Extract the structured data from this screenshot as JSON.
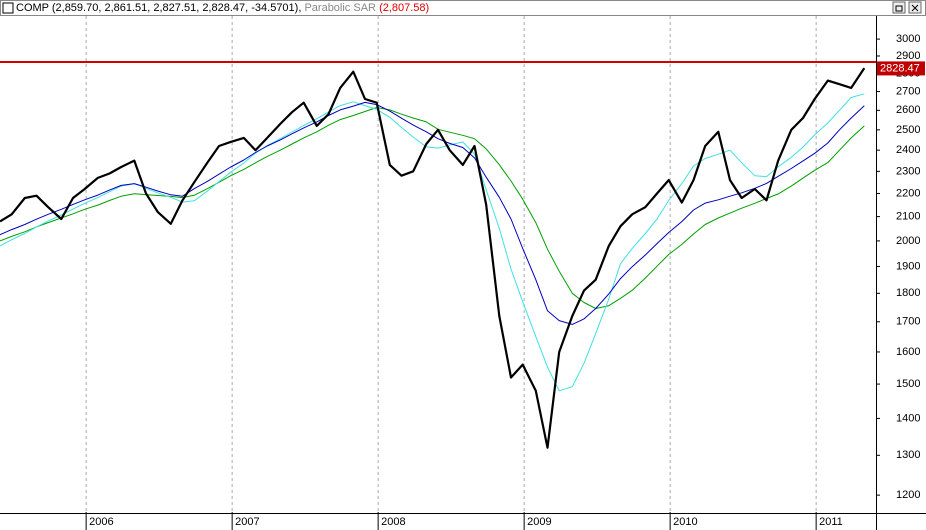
{
  "header": {
    "symbol_info": "COMP (2,859.70, 2,861.51, 2,827.51, 2,828.47, -34.5701),",
    "indicator": "Parabolic SAR",
    "indicator_value": "(2,807.58)"
  },
  "chart_data": {
    "type": "line",
    "log_y": true,
    "grid": true,
    "xlim": [
      2005.41,
      2011.41
    ],
    "xticks": [
      2006,
      2007,
      2008,
      2009,
      2010,
      2011
    ],
    "ylim": [
      1160,
      3130
    ],
    "yticks": [
      1200,
      1300,
      1400,
      1500,
      1600,
      1700,
      1800,
      1900,
      2000,
      2100,
      2200,
      2300,
      2400,
      2500,
      2600,
      2700,
      2800,
      2900,
      3000
    ],
    "hline": 2865,
    "hline_color": "#d00000",
    "last_value": 2828.47,
    "x": [
      2005.41,
      2005.49,
      2005.58,
      2005.66,
      2005.74,
      2005.83,
      2005.91,
      2005.99,
      2006.08,
      2006.16,
      2006.24,
      2006.33,
      2006.41,
      2006.49,
      2006.58,
      2006.66,
      2006.74,
      2006.83,
      2006.91,
      2006.99,
      2007.08,
      2007.16,
      2007.24,
      2007.33,
      2007.41,
      2007.49,
      2007.58,
      2007.66,
      2007.74,
      2007.83,
      2007.91,
      2007.99,
      2008.08,
      2008.16,
      2008.24,
      2008.33,
      2008.41,
      2008.49,
      2008.58,
      2008.66,
      2008.74,
      2008.83,
      2008.91,
      2008.99,
      2009.08,
      2009.16,
      2009.24,
      2009.33,
      2009.41,
      2009.49,
      2009.58,
      2009.66,
      2009.74,
      2009.83,
      2009.91,
      2009.99,
      2010.08,
      2010.16,
      2010.24,
      2010.33,
      2010.41,
      2010.49,
      2010.58,
      2010.66,
      2010.74,
      2010.83,
      2010.91,
      2010.99,
      2011.08,
      2011.16,
      2011.24,
      2011.33
    ],
    "series": [
      {
        "color": "#00a000",
        "width": 1,
        "values": [
          2000,
          2018,
          2037,
          2057,
          2075,
          2094,
          2112,
          2131,
          2149,
          2169,
          2188,
          2199,
          2195,
          2191,
          2187,
          2182,
          2192,
          2221,
          2250,
          2280,
          2309,
          2340,
          2370,
          2400,
          2430,
          2460,
          2490,
          2523,
          2552,
          2573,
          2594,
          2615,
          2602,
          2580,
          2560,
          2540,
          2503,
          2488,
          2473,
          2456,
          2406,
          2331,
          2256,
          2175,
          2075,
          1967,
          1882,
          1800,
          1767,
          1746,
          1756,
          1782,
          1811,
          1856,
          1901,
          1946,
          1986,
          2028,
          2067,
          2094,
          2115,
          2136,
          2157,
          2178,
          2198,
          2233,
          2269,
          2305,
          2341,
          2400,
          2460,
          2520
        ]
      },
      {
        "color": "#40e0e0",
        "width": 1,
        "values": [
          1980,
          2005,
          2030,
          2057,
          2082,
          2107,
          2132,
          2157,
          2182,
          2208,
          2233,
          2243,
          2223,
          2203,
          2183,
          2162,
          2168,
          2210,
          2253,
          2296,
          2339,
          2386,
          2422,
          2456,
          2489,
          2522,
          2556,
          2592,
          2625,
          2645,
          2625,
          2605,
          2564,
          2512,
          2464,
          2416,
          2410,
          2425,
          2440,
          2381,
          2216,
          2051,
          1890,
          1770,
          1650,
          1552,
          1480,
          1492,
          1564,
          1660,
          1780,
          1910,
          1970,
          2030,
          2090,
          2169,
          2244,
          2325,
          2360,
          2380,
          2400,
          2340,
          2280,
          2276,
          2321,
          2366,
          2415,
          2475,
          2535,
          2600,
          2668,
          2688
        ]
      },
      {
        "color": "#0000c0",
        "width": 1,
        "values": [
          2025,
          2046,
          2067,
          2089,
          2110,
          2131,
          2152,
          2172,
          2193,
          2215,
          2236,
          2244,
          2228,
          2211,
          2194,
          2188,
          2221,
          2254,
          2287,
          2320,
          2353,
          2389,
          2420,
          2450,
          2480,
          2510,
          2540,
          2573,
          2602,
          2622,
          2642,
          2630,
          2596,
          2559,
          2524,
          2490,
          2456,
          2433,
          2413,
          2363,
          2273,
          2183,
          2090,
          1970,
          1850,
          1738,
          1704,
          1691,
          1710,
          1746,
          1798,
          1854,
          1899,
          1944,
          1989,
          2034,
          2079,
          2128,
          2158,
          2172,
          2188,
          2203,
          2223,
          2245,
          2277,
          2313,
          2349,
          2385,
          2435,
          2500,
          2560,
          2624
        ]
      },
      {
        "color": "#000000",
        "width": 2.2,
        "values": [
          2080,
          2110,
          2180,
          2190,
          2140,
          2090,
          2180,
          2220,
          2270,
          2290,
          2320,
          2350,
          2200,
          2120,
          2070,
          2170,
          2250,
          2340,
          2420,
          2440,
          2460,
          2400,
          2460,
          2530,
          2590,
          2640,
          2520,
          2580,
          2720,
          2810,
          2660,
          2640,
          2330,
          2280,
          2300,
          2430,
          2500,
          2400,
          2330,
          2420,
          2150,
          1720,
          1520,
          1560,
          1480,
          1320,
          1600,
          1720,
          1810,
          1850,
          1980,
          2060,
          2110,
          2140,
          2200,
          2260,
          2160,
          2260,
          2420,
          2490,
          2260,
          2180,
          2220,
          2170,
          2350,
          2500,
          2560,
          2660,
          2760,
          2740,
          2720,
          2830
        ]
      }
    ]
  }
}
